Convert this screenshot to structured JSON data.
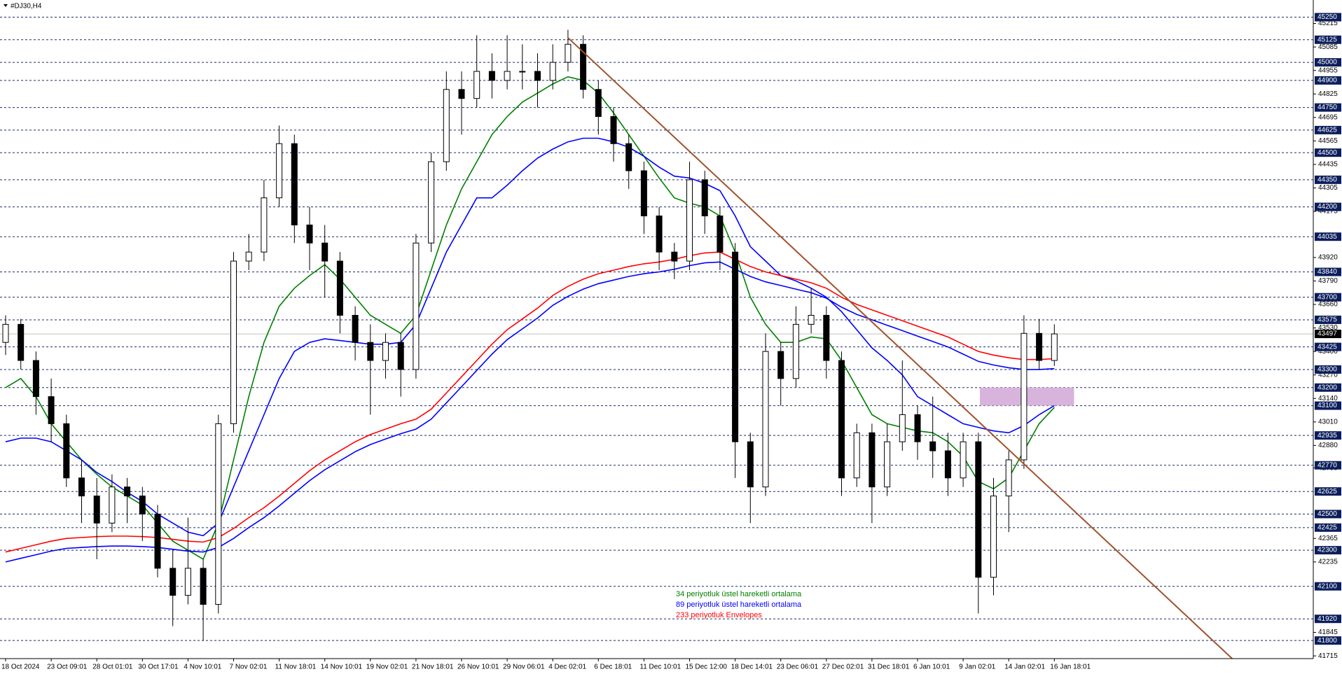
{
  "chart_data": {
    "type": "candlestick",
    "title": "#DJ30,H4",
    "categories": [
      "18 Oct 2024",
      null,
      null,
      "23 Oct 09:01",
      null,
      null,
      "28 Oct 01:01",
      null,
      null,
      "30 Oct 17:01",
      null,
      null,
      "4 Nov 10:01",
      null,
      null,
      "7 Nov 02:01",
      null,
      null,
      "11 Nov 18:01",
      null,
      null,
      "14 Nov 10:01",
      null,
      null,
      "19 Nov 02:01",
      null,
      null,
      "21 Nov 18:01",
      null,
      null,
      "26 Nov 10:01",
      null,
      null,
      "29 Nov 06:01",
      null,
      null,
      "4 Dec 02:01",
      null,
      null,
      "6 Dec 18:01",
      null,
      null,
      "11 Dec 10:01",
      null,
      null,
      "15 Dec 12:00",
      null,
      null,
      "18 Dec 14:01",
      null,
      null,
      "23 Dec 06:01",
      null,
      null,
      "27 Dec 02:01",
      null,
      null,
      "31 Dec 18:01",
      null,
      null,
      "6 Jan 10:01",
      null,
      null,
      "9 Jan 02:01",
      null,
      null,
      "14 Jan 02:01",
      null,
      null,
      "16 Jan 18:01"
    ],
    "open": [
      43450,
      43550,
      43350,
      43150,
      43000,
      42700,
      42600,
      42450,
      42650,
      42600,
      42500,
      42200,
      42050,
      42200,
      42000,
      43000,
      43900,
      43950,
      44250,
      44550,
      44100,
      44000,
      43900,
      43600,
      43450,
      43350,
      43450,
      43300,
      44000,
      44450,
      44850,
      44800,
      44950,
      44900,
      44950,
      44950,
      44900,
      45000,
      45100,
      44850,
      44700,
      44550,
      44400,
      44150,
      43950,
      43900,
      44350,
      44150,
      43950,
      42900,
      42650,
      43400,
      43250,
      43550,
      43600,
      43350,
      42700,
      42950,
      42650,
      42900,
      43050,
      42900,
      42850,
      42700,
      42900,
      42150,
      42600,
      42800,
      43500,
      43350
    ],
    "high": [
      43600,
      43580,
      43400,
      43250,
      43050,
      42800,
      42700,
      42720,
      42700,
      42650,
      42550,
      42300,
      42480,
      42250,
      43050,
      43950,
      44050,
      44350,
      44650,
      44600,
      44200,
      44100,
      43950,
      43650,
      43550,
      43500,
      43500,
      44050,
      44500,
      44950,
      44950,
      45150,
      45050,
      45150,
      45100,
      45050,
      45100,
      45180,
      45150,
      44900,
      44750,
      44600,
      44450,
      44200,
      44000,
      44450,
      44400,
      44200,
      44000,
      42950,
      43500,
      43450,
      43650,
      43750,
      43650,
      43400,
      43000,
      43000,
      43000,
      43350,
      43100,
      43150,
      42950,
      42950,
      42950,
      42700,
      42850,
      43600,
      43580,
      43550
    ],
    "low": [
      43380,
      43300,
      43050,
      42900,
      42650,
      42450,
      42250,
      42400,
      42450,
      42350,
      42150,
      41880,
      42000,
      41800,
      41950,
      42950,
      43850,
      43900,
      44200,
      44000,
      43850,
      43700,
      43500,
      43350,
      43050,
      43250,
      43150,
      43250,
      43950,
      44400,
      44600,
      44750,
      44800,
      44850,
      44850,
      44750,
      44850,
      44950,
      44800,
      44600,
      44450,
      44300,
      44050,
      43850,
      43800,
      43850,
      44050,
      43850,
      42700,
      42450,
      42600,
      43100,
      43200,
      43500,
      43250,
      42600,
      42650,
      42450,
      42600,
      42850,
      42800,
      42700,
      42600,
      42650,
      41950,
      42050,
      42400,
      42750,
      43300,
      43320
    ],
    "close": [
      43550,
      43350,
      43150,
      43000,
      42700,
      42600,
      42450,
      42650,
      42600,
      42500,
      42200,
      42050,
      42200,
      42000,
      43000,
      43900,
      43950,
      44250,
      44550,
      44100,
      44000,
      43900,
      43600,
      43450,
      43350,
      43450,
      43300,
      44000,
      44450,
      44850,
      44800,
      44950,
      44900,
      44950,
      44950,
      44900,
      45000,
      45100,
      44850,
      44700,
      44550,
      44400,
      44150,
      43950,
      43900,
      44350,
      44150,
      43950,
      42900,
      42650,
      43400,
      43250,
      43550,
      43600,
      43350,
      42700,
      42950,
      42650,
      42900,
      43050,
      42900,
      42850,
      42700,
      42900,
      42150,
      42600,
      42800,
      43500,
      43350,
      43497
    ],
    "series": [
      {
        "name": "34 periyotluk üstel hareketli ortalama",
        "color": "#008000",
        "values": [
          43200,
          43250,
          43150,
          43000,
          42900,
          42800,
          42720,
          42650,
          42600,
          42550,
          42450,
          42350,
          42300,
          42250,
          42450,
          42800,
          43150,
          43450,
          43650,
          43750,
          43820,
          43880,
          43800,
          43700,
          43600,
          43550,
          43500,
          43600,
          43850,
          44100,
          44300,
          44450,
          44600,
          44700,
          44780,
          44830,
          44880,
          44920,
          44900,
          44830,
          44720,
          44600,
          44480,
          44360,
          44250,
          44220,
          44200,
          44150,
          43950,
          43700,
          43550,
          43450,
          43450,
          43480,
          43470,
          43350,
          43200,
          43050,
          43000,
          42980,
          42960,
          42950,
          42900,
          42820,
          42680,
          42640,
          42700,
          42850,
          43000,
          43090
        ]
      },
      {
        "name": "89 periyotluk üstel hareketli ortalama",
        "color": "#0000ff",
        "values": [
          42900,
          42920,
          42920,
          42900,
          42850,
          42800,
          42730,
          42680,
          42620,
          42570,
          42500,
          42450,
          42400,
          42380,
          42450,
          42650,
          42850,
          43050,
          43250,
          43400,
          43450,
          43470,
          43460,
          43450,
          43440,
          43440,
          43450,
          43550,
          43750,
          43950,
          44100,
          44250,
          44250,
          44320,
          44400,
          44470,
          44520,
          44560,
          44580,
          44580,
          44560,
          44530,
          44480,
          44420,
          44370,
          44360,
          44330,
          44290,
          44150,
          43980,
          43900,
          43820,
          43790,
          43750,
          43700,
          43620,
          43520,
          43420,
          43350,
          43270,
          43150,
          43100,
          43050,
          43000,
          42980,
          42960,
          42950,
          42990,
          43050,
          43100
        ]
      },
      {
        "name": "233 periyotluk Envelopes",
        "color": "#ff0000",
        "values": [
          42290,
          42310,
          42330,
          42350,
          42365,
          42370,
          42375,
          42378,
          42378,
          42375,
          42370,
          42360,
          42350,
          42345,
          42370,
          42420,
          42480,
          42535,
          42600,
          42670,
          42740,
          42800,
          42850,
          42900,
          42940,
          42970,
          43000,
          43025,
          43080,
          43170,
          43260,
          43350,
          43440,
          43520,
          43580,
          43640,
          43710,
          43760,
          43800,
          43830,
          43850,
          43870,
          43885,
          43895,
          43910,
          43930,
          43945,
          43950,
          43910,
          43870,
          43840,
          43820,
          43800,
          43780,
          43750,
          43700,
          43660,
          43630,
          43600,
          43570,
          43540,
          43510,
          43480,
          43440,
          43400,
          43380,
          43365,
          43355,
          43355,
          43360
        ]
      },
      {
        "color": "#0000ff",
        "values": [
          42235,
          42255,
          42275,
          42295,
          42310,
          42315,
          42320,
          42323,
          42323,
          42320,
          42315,
          42305,
          42295,
          42290,
          42315,
          42365,
          42425,
          42480,
          42545,
          42615,
          42685,
          42745,
          42795,
          42845,
          42885,
          42915,
          42945,
          42970,
          43025,
          43115,
          43205,
          43295,
          43385,
          43465,
          43525,
          43585,
          43655,
          43705,
          43745,
          43775,
          43795,
          43815,
          43830,
          43840,
          43855,
          43875,
          43890,
          43895,
          43855,
          43815,
          43785,
          43765,
          43745,
          43725,
          43695,
          43645,
          43605,
          43575,
          43545,
          43515,
          43485,
          43455,
          43425,
          43385,
          43345,
          43325,
          43310,
          43300,
          43300,
          43305
        ]
      }
    ],
    "ylim": [
      41700,
      45345
    ],
    "yticks": [
      45215,
      45085,
      44955,
      44825,
      44695,
      44565,
      44435,
      44305,
      44175,
      43920,
      43790,
      43660,
      43530,
      43400,
      43270,
      43140,
      43010,
      42880,
      42755,
      42365,
      42235,
      41845,
      41715
    ],
    "levels": [
      45250,
      45125,
      45000,
      44900,
      44750,
      44625,
      44500,
      44350,
      44200,
      44035,
      43840,
      43700,
      43575,
      43425,
      43300,
      43200,
      43100,
      42935,
      42770,
      42625,
      42500,
      42425,
      42300,
      42100,
      41920,
      41800
    ],
    "last_price": 43497,
    "trendline": {
      "x": [
        37,
        80.7
      ],
      "y": [
        45136,
        41700
      ],
      "color": "#a0522d"
    },
    "zone": {
      "x": [
        64.1,
        70.3
      ],
      "y": [
        43100,
        43200
      ],
      "color": "#d8b4dc"
    }
  }
}
